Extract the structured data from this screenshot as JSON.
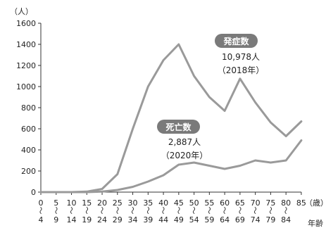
{
  "chart_data": {
    "type": "line",
    "ylabel_unit": "（人）",
    "x_unit": "（歳）",
    "xlabel": "年齢",
    "ylim": [
      0,
      1600
    ],
    "yticks": [
      0,
      200,
      400,
      600,
      800,
      1000,
      1200,
      1400,
      1600
    ],
    "grid": false,
    "legend": "none",
    "categories": [
      "0〜4",
      "5〜9",
      "10〜14",
      "15〜19",
      "20〜24",
      "25〜29",
      "30〜34",
      "35〜39",
      "40〜44",
      "45〜49",
      "50〜54",
      "55〜59",
      "60〜64",
      "65〜69",
      "70〜74",
      "75〜79",
      "80〜84",
      "85〜"
    ],
    "x_top_labels": [
      "0",
      "5",
      "10",
      "15",
      "20",
      "25",
      "30",
      "35",
      "40",
      "45",
      "50",
      "55",
      "60",
      "65",
      "70",
      "75",
      "80",
      "85"
    ],
    "x_bottom_labels": [
      "4",
      "9",
      "14",
      "19",
      "24",
      "29",
      "34",
      "39",
      "44",
      "49",
      "54",
      "59",
      "64",
      "69",
      "74",
      "79",
      "84",
      ""
    ],
    "series": [
      {
        "values": [
          0,
          0,
          0,
          5,
          30,
          170,
          600,
          1000,
          1250,
          1400,
          1100,
          900,
          770,
          1075,
          850,
          660,
          530,
          670
        ],
        "color": "#9a9a9a"
      },
      {
        "values": [
          0,
          0,
          0,
          0,
          5,
          20,
          50,
          100,
          160,
          260,
          280,
          250,
          220,
          250,
          300,
          280,
          300,
          490
        ],
        "color": "#9a9a9a"
      }
    ],
    "annotations": [
      {
        "badge": "発症数",
        "line1": "10,978人",
        "line2": "（2018年）"
      },
      {
        "badge": "死亡数",
        "line1": "2,887人",
        "line2": "（2020年）"
      }
    ]
  }
}
